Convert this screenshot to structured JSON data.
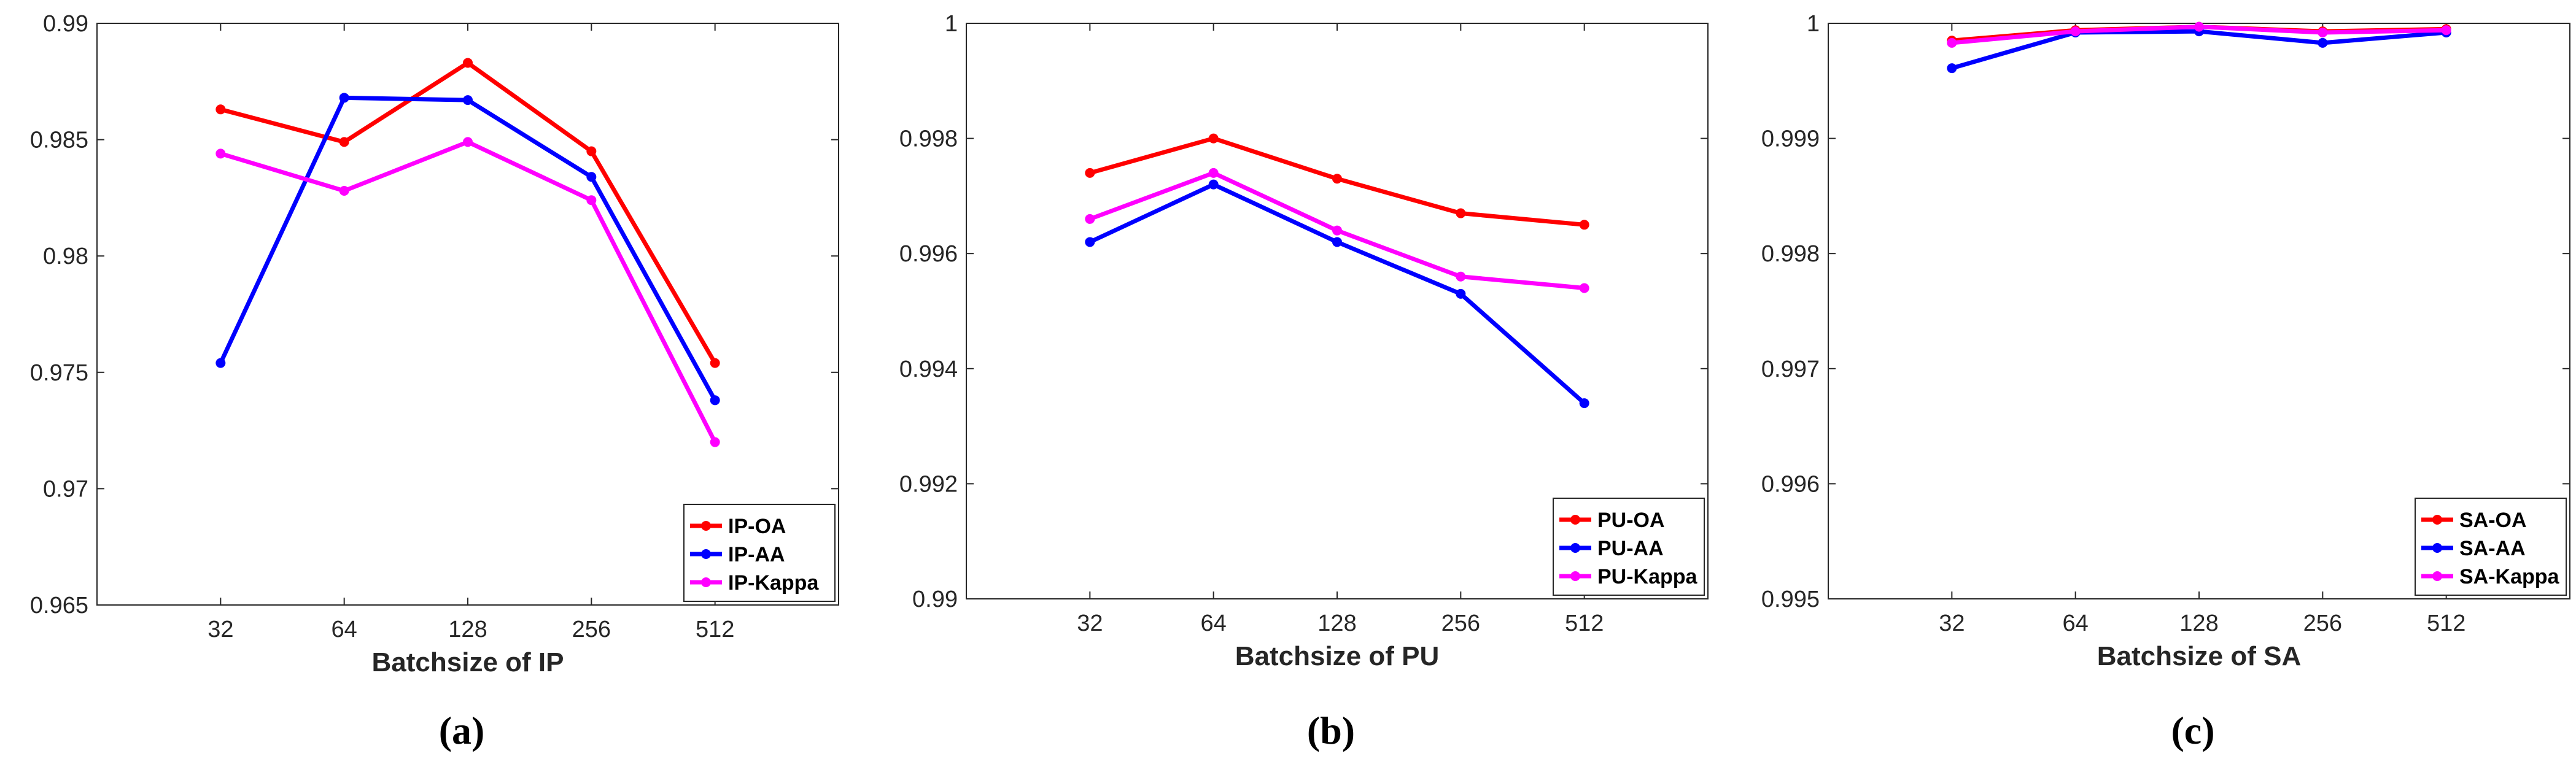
{
  "chart_data": [
    {
      "type": "line",
      "panel_label": "(a)",
      "xlabel": "Batchsize of IP",
      "ylabel": "",
      "categories": [
        "32",
        "64",
        "128",
        "256",
        "512"
      ],
      "ylim": [
        0.965,
        0.99
      ],
      "yticks": [
        0.965,
        0.97,
        0.975,
        0.98,
        0.985,
        0.99
      ],
      "ytick_labels": [
        "0.965",
        "0.97",
        "0.975",
        "0.98",
        "0.985",
        "0.99"
      ],
      "legend_position": "bottom-right",
      "grid": false,
      "series": [
        {
          "name": "IP-OA",
          "color": "#ff0000",
          "values": [
            0.9863,
            0.9849,
            0.9883,
            0.9845,
            0.9754
          ]
        },
        {
          "name": "IP-AA",
          "color": "#0000ff",
          "values": [
            0.9754,
            0.9868,
            0.9867,
            0.9834,
            0.9738
          ]
        },
        {
          "name": "IP-Kappa",
          "color": "#ff00ff",
          "values": [
            0.9844,
            0.9828,
            0.9849,
            0.9824,
            0.972
          ]
        }
      ]
    },
    {
      "type": "line",
      "panel_label": "(b)",
      "xlabel": "Batchsize of PU",
      "ylabel": "",
      "categories": [
        "32",
        "64",
        "128",
        "256",
        "512"
      ],
      "ylim": [
        0.99,
        1.0
      ],
      "yticks": [
        0.99,
        0.992,
        0.994,
        0.996,
        0.998,
        1.0
      ],
      "ytick_labels": [
        "0.99",
        "0.992",
        "0.994",
        "0.996",
        "0.998",
        "1"
      ],
      "legend_position": "bottom-right",
      "grid": false,
      "series": [
        {
          "name": "PU-OA",
          "color": "#ff0000",
          "values": [
            0.9974,
            0.998,
            0.9973,
            0.9967,
            0.9965
          ]
        },
        {
          "name": "PU-AA",
          "color": "#0000ff",
          "values": [
            0.9962,
            0.9972,
            0.9962,
            0.9953,
            0.9934
          ]
        },
        {
          "name": "PU-Kappa",
          "color": "#ff00ff",
          "values": [
            0.9966,
            0.9974,
            0.9964,
            0.9956,
            0.9954
          ]
        }
      ]
    },
    {
      "type": "line",
      "panel_label": "(c)",
      "xlabel": "Batchsize of SA",
      "ylabel": "",
      "categories": [
        "32",
        "64",
        "128",
        "256",
        "512"
      ],
      "ylim": [
        0.995,
        1.0
      ],
      "yticks": [
        0.995,
        0.996,
        0.997,
        0.998,
        0.999,
        1.0
      ],
      "ytick_labels": [
        "0.995",
        "0.996",
        "0.997",
        "0.998",
        "0.999",
        "1"
      ],
      "legend_position": "bottom-right",
      "grid": false,
      "series": [
        {
          "name": "SA-OA",
          "color": "#ff0000",
          "values": [
            0.99985,
            0.99994,
            0.99997,
            0.99993,
            0.99995
          ]
        },
        {
          "name": "SA-AA",
          "color": "#0000ff",
          "values": [
            0.99961,
            0.99992,
            0.99993,
            0.99983,
            0.99992
          ]
        },
        {
          "name": "SA-Kappa",
          "color": "#ff00ff",
          "values": [
            0.99983,
            0.99993,
            0.99997,
            0.99992,
            0.99994
          ]
        }
      ]
    }
  ]
}
